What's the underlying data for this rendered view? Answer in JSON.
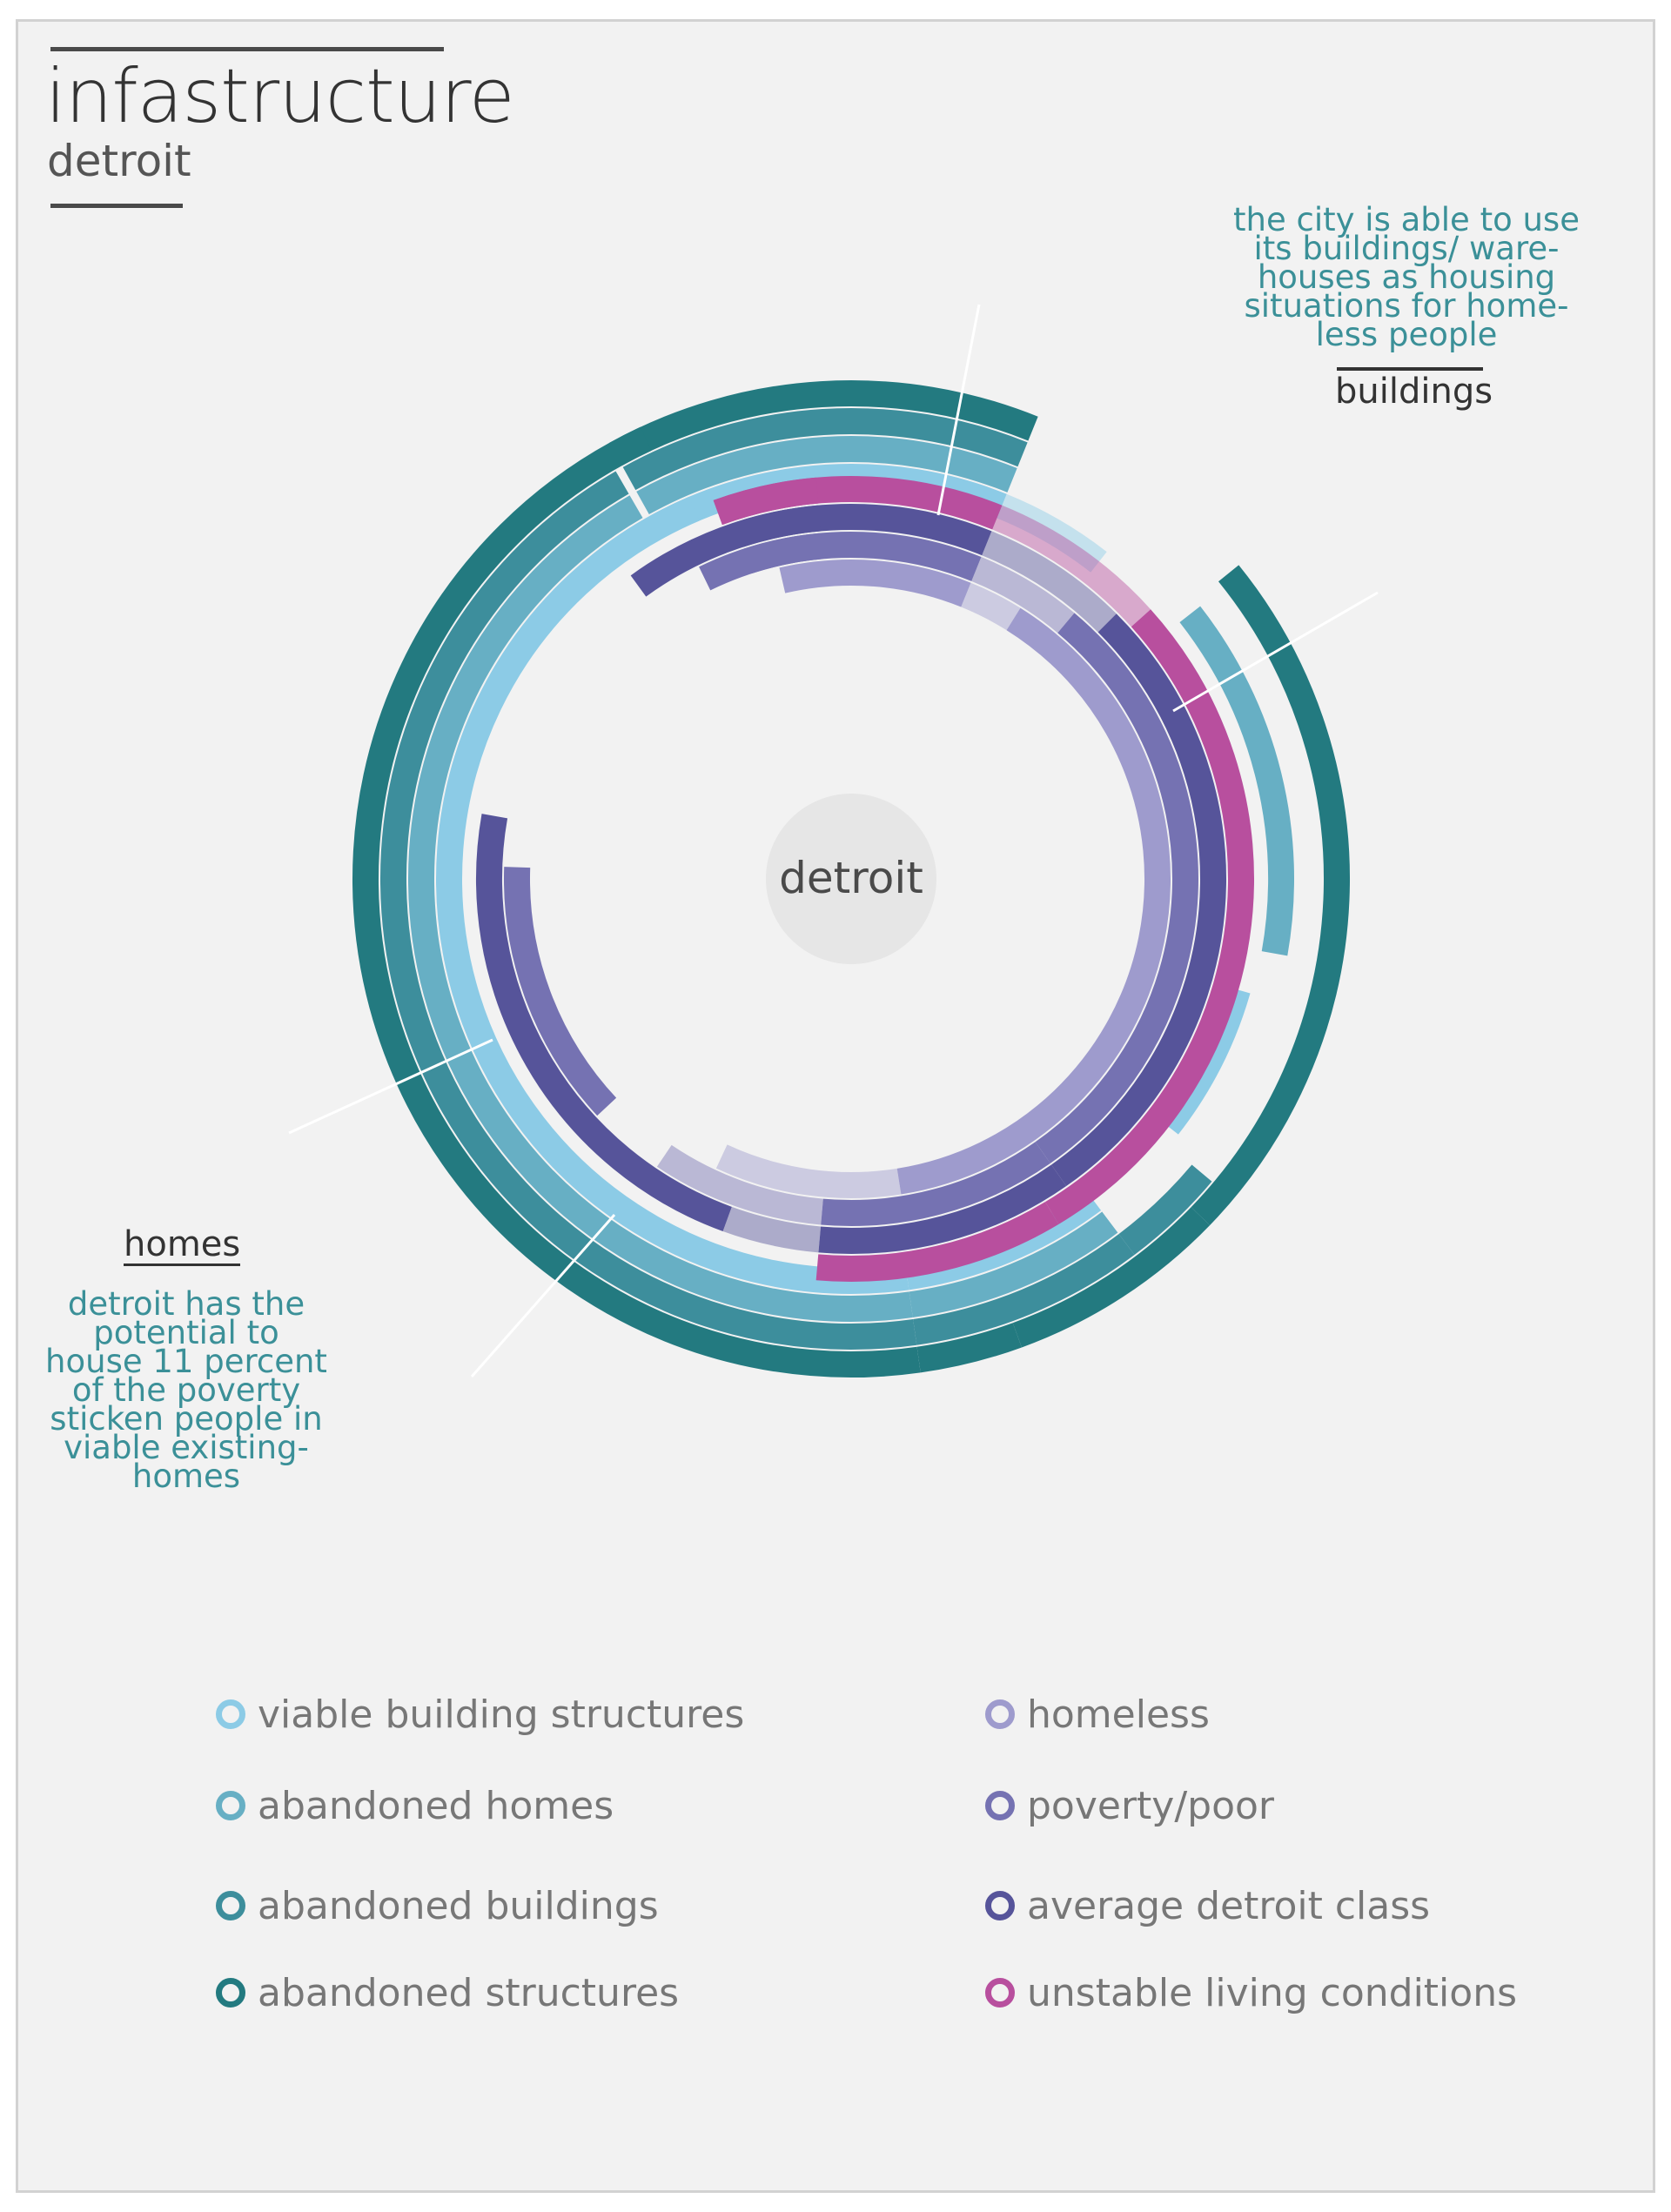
{
  "header": {
    "title": "infastructure",
    "subtitle": "detroit"
  },
  "annotations": {
    "buildings": {
      "heading": "buildings",
      "text": [
        "the city is able to use",
        "its buildings/ ware-",
        "houses as housing",
        "situations for home-",
        "less people"
      ]
    },
    "homes": {
      "heading": "homes",
      "text": [
        "detroit has the",
        "potential to",
        "house 11 percent",
        "of the poverty",
        "sticken people in",
        "viable existing-",
        "homes"
      ]
    }
  },
  "chart_data": {
    "type": "radial-arc",
    "title": "infastructure",
    "subtitle": "detroit",
    "center_label": "detroit",
    "segments": [
      "buildings",
      "homes"
    ],
    "series": [
      {
        "name": "viable building structures",
        "color": "#8ccbe6",
        "arcs": [
          [
            -29,
            22
          ],
          [
            22,
            38
          ],
          [
            106,
            128
          ],
          [
            143,
            172
          ],
          [
            172,
            337
          ]
        ]
      },
      {
        "name": "abandoned homes",
        "color": "#67afc4",
        "arcs": [
          [
            -29,
            22
          ],
          [
            52,
            100
          ],
          [
            143,
            172
          ],
          [
            172,
            330
          ]
        ]
      },
      {
        "name": "abandoned buildings",
        "color": "#3d8e9c",
        "arcs": [
          [
            -29,
            22
          ],
          [
            130,
            143
          ],
          [
            143,
            172
          ],
          [
            172,
            330
          ]
        ]
      },
      {
        "name": "abandoned structures",
        "color": "#237a80",
        "arcs": [
          [
            -29,
            22
          ],
          [
            51,
            134
          ],
          [
            134,
            160
          ],
          [
            160,
            172
          ],
          [
            172,
            335
          ]
        ]
      },
      {
        "name": "homeless",
        "color": "#9e9bcd",
        "arcs": [
          [
            -13,
            22
          ],
          [
            22,
            40
          ],
          [
            32,
            171
          ],
          [
            171,
            205
          ]
        ]
      },
      {
        "name": "poverty/poor",
        "color": "#7572b2",
        "arcs": [
          [
            -18,
            22
          ],
          [
            22,
            40
          ],
          [
            40,
            145
          ],
          [
            145,
            185
          ],
          [
            185,
            214
          ],
          [
            227,
            272
          ],
          [
            334,
            355
          ]
        ]
      },
      {
        "name": "average detroit class",
        "color": "#56549a",
        "arcs": [
          [
            -18,
            22
          ],
          [
            22,
            45
          ],
          [
            45,
            145
          ],
          [
            145,
            185
          ],
          [
            185,
            200
          ],
          [
            200,
            280
          ],
          [
            324,
            355
          ]
        ]
      },
      {
        "name": "unstable living conditions",
        "color": "#b84f9e",
        "arcs": [
          [
            -20,
            22
          ],
          [
            22,
            48
          ],
          [
            48,
            149
          ],
          [
            149,
            185
          ],
          [
            340,
            355
          ]
        ]
      }
    ]
  },
  "legend": [
    {
      "label": "viable building structures",
      "color": "#8ccbe6"
    },
    {
      "label": "abandoned homes",
      "color": "#67afc4"
    },
    {
      "label": "abandoned buildings",
      "color": "#3d8e9c"
    },
    {
      "label": "abandoned structures",
      "color": "#237a80"
    },
    {
      "label": "homeless",
      "color": "#9e9bcd"
    },
    {
      "label": "poverty/poor",
      "color": "#7572b2"
    },
    {
      "label": "average detroit class",
      "color": "#56549a"
    },
    {
      "label": "unstable living conditions",
      "color": "#b84f9e"
    }
  ]
}
